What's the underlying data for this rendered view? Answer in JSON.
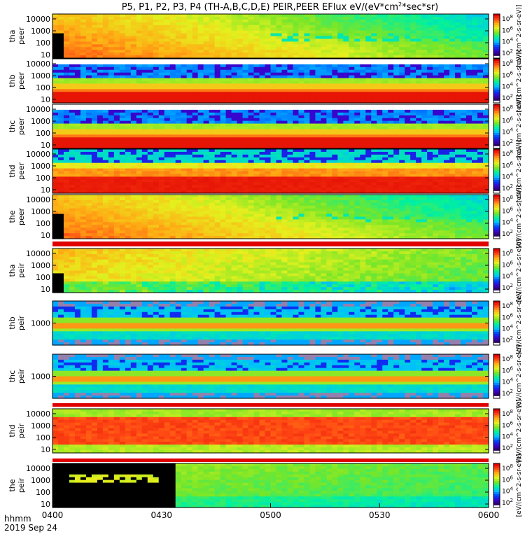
{
  "title": "P5, P1, P2, P3, P4 (TH-A,B,C,D,E) PEIR,PEER EFlux eV/(eV*cm",
  "title_sup": "2",
  "title_tail": "*sec*sr)",
  "time_axis": {
    "ticks": [
      "0400",
      "0430",
      "0500",
      "0530",
      "0600"
    ],
    "unit_label": "hhmm",
    "date_label": "2019 Sep 24"
  },
  "colorbar": {
    "unit_label": "[eV/(cm^2-s-sr-eV)]",
    "tick_labels": [
      "10^2",
      "10^4",
      "10^6",
      "10^8"
    ]
  },
  "panels": [
    {
      "probe": "tha",
      "species": "peer",
      "yticks": [
        "10000",
        "1000",
        "100",
        "10"
      ],
      "style": "warm"
    },
    {
      "probe": "thb",
      "species": "peer",
      "yticks": [
        "10000",
        "1000",
        "100",
        "10"
      ],
      "style": "bands"
    },
    {
      "probe": "thc",
      "species": "peer",
      "yticks": [
        "10000",
        "1000",
        "100",
        "10"
      ],
      "style": "bands"
    },
    {
      "probe": "thd",
      "species": "peer",
      "yticks": [
        "10000",
        "1000",
        "100",
        "10"
      ],
      "style": "hot"
    },
    {
      "probe": "the",
      "species": "peer",
      "yticks": [
        "10000",
        "1000",
        "100",
        "10"
      ],
      "style": "warm"
    },
    {
      "probe": "tha",
      "species": "peir",
      "yticks": [
        "10000",
        "1000",
        "100",
        "10"
      ],
      "style": "ion"
    },
    {
      "probe": "thb",
      "species": "peir",
      "yticks": [
        "1000"
      ],
      "style": "ionbands"
    },
    {
      "probe": "thc",
      "species": "peir",
      "yticks": [
        "1000"
      ],
      "style": "ionbands"
    },
    {
      "probe": "thd",
      "species": "peir",
      "yticks": [
        "10000",
        "1000",
        "100",
        "10"
      ],
      "style": "hot2"
    },
    {
      "probe": "the",
      "species": "peir",
      "yticks": [
        "10000",
        "1000",
        "100",
        "10"
      ],
      "style": "ion2"
    }
  ],
  "chart_data": {
    "type": "heatmap",
    "title": "P5, P1, P2, P3, P4 (TH-A,B,C,D,E) PEIR,PEER EFlux eV/(eV*cm^2*sec*sr)",
    "x_axis": {
      "label": "hhmm",
      "start": "0400",
      "end": "0600",
      "date": "2019 Sep 24"
    },
    "y_axis": {
      "quantity": "energy (eV)",
      "scale": "log",
      "range": [
        5,
        30000
      ]
    },
    "color_scale": {
      "type": "log",
      "range": [
        100,
        300000000
      ],
      "colormap": "rainbow"
    },
    "series": [
      {
        "name": "tha peer"
      },
      {
        "name": "thb peer"
      },
      {
        "name": "thc peer"
      },
      {
        "name": "thd peer"
      },
      {
        "name": "the peer"
      },
      {
        "name": "tha peir"
      },
      {
        "name": "thb peir"
      },
      {
        "name": "thc peir"
      },
      {
        "name": "thd peir"
      },
      {
        "name": "the peir"
      }
    ]
  }
}
